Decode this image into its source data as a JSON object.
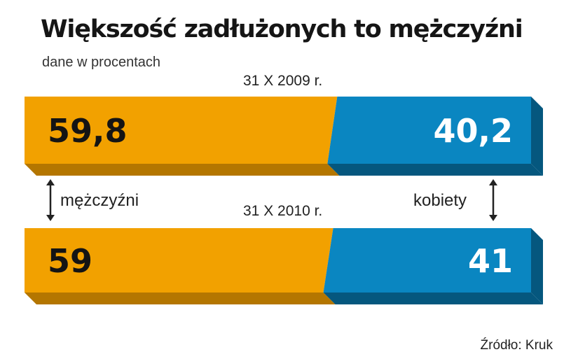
{
  "title": "Większość zadłużonych to mężczyźni",
  "subtitle": "dane w procentach",
  "source": "Źródło: Kruk",
  "colors": {
    "men": "#f2a100",
    "women": "#0a86c1"
  },
  "chart_data": {
    "type": "bar",
    "stacked": true,
    "orientation": "horizontal",
    "categories": [
      "31 X 2009 r.",
      "31 X 2010 r."
    ],
    "series": [
      {
        "name": "mężczyźni",
        "values": [
          59.8,
          59
        ],
        "labels": [
          "59,8",
          "59"
        ]
      },
      {
        "name": "kobiety",
        "values": [
          40.2,
          41
        ],
        "labels": [
          "40,2",
          "41"
        ]
      }
    ]
  }
}
